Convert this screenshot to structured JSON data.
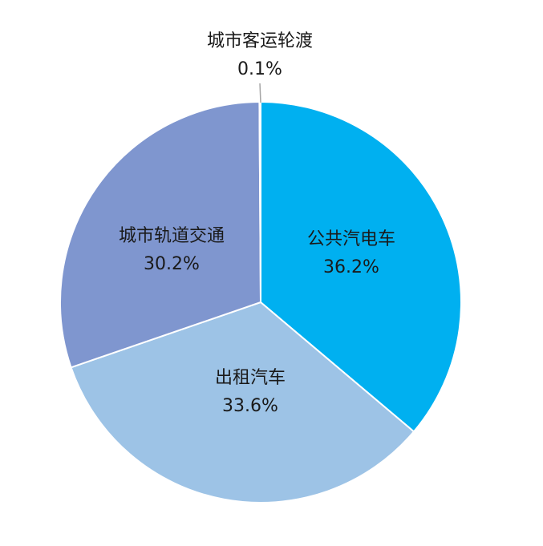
{
  "chart_data": {
    "type": "pie",
    "title": "",
    "start_angle_deg": 0,
    "direction": "clockwise",
    "slices": [
      {
        "label": "公共汽电车",
        "value": 36.2,
        "value_text": "36.2%",
        "color": "#00b0f0"
      },
      {
        "label": "出租汽车",
        "value": 33.6,
        "value_text": "33.6%",
        "color": "#9dc3e6"
      },
      {
        "label": "城市轨道交通",
        "value": 30.2,
        "value_text": "30.2%",
        "color": "#7f96cf"
      },
      {
        "label": "城市客运轮渡",
        "value": 0.1,
        "value_text": "0.1%",
        "color": "#c5d2ea"
      }
    ],
    "border_color": "#ffffff",
    "leader_color": "#a6a6a6"
  }
}
